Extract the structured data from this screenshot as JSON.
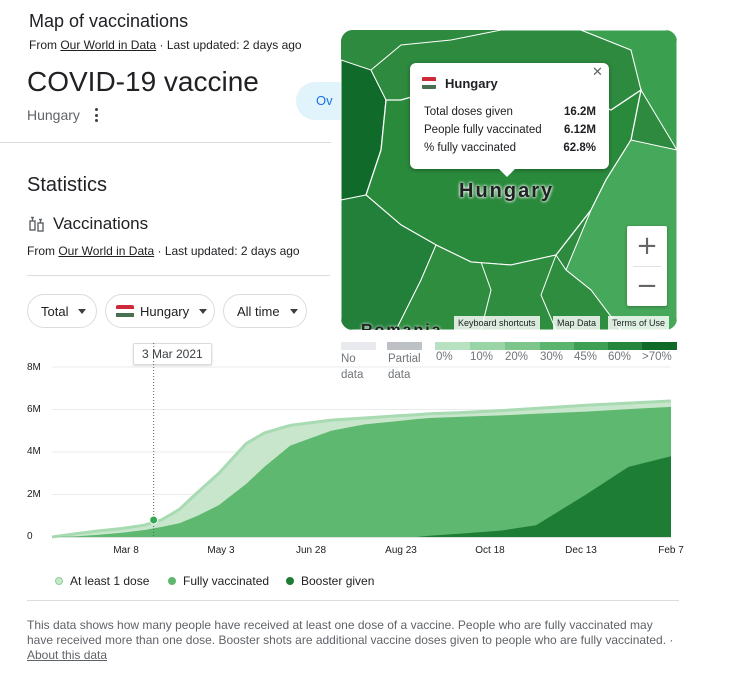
{
  "map_header": {
    "title": "Map of vaccinations",
    "source_prefix": "From ",
    "source_link": "Our World in Data",
    "updated": " · Last updated: 2 days ago"
  },
  "page": {
    "title": "COVID-19 vaccine",
    "location": "Hungary",
    "tab_partial": "Ov"
  },
  "statistics": {
    "heading": "Statistics",
    "section": "Vaccinations",
    "section_icon": "syringe-icon",
    "source_prefix": "From ",
    "source_link": "Our World in Data",
    "updated": " · Last updated: 2 days ago"
  },
  "filters": [
    {
      "label": "Total"
    },
    {
      "label": "Hungary",
      "icon": "hungary-flag-icon"
    },
    {
      "label": "All time"
    }
  ],
  "chart_marker": {
    "date": "3 Mar 2021"
  },
  "map": {
    "country_label": "Hungary",
    "attributions": [
      "Keyboard shortcuts",
      "Map Data",
      "Terms of Use"
    ],
    "partial_bottom_label": "Romania",
    "tooltip": {
      "country": "Hungary",
      "rows": [
        {
          "label": "Total doses given",
          "value": "16.2M"
        },
        {
          "label": "People fully vaccinated",
          "value": "6.12M"
        },
        {
          "label": "% fully vaccinated",
          "value": "62.8%"
        }
      ]
    },
    "scale": [
      {
        "label": "No data",
        "line1": "No",
        "line2": "data",
        "color": "#e8eaed"
      },
      {
        "label": "Partial data",
        "line1": "Partial",
        "line2": "data",
        "color": "#bdc1c6"
      },
      {
        "label": "0%",
        "color": "#b7e1c0"
      },
      {
        "label": "10%",
        "color": "#99d4a6"
      },
      {
        "label": "20%",
        "color": "#7cc68c"
      },
      {
        "label": "30%",
        "color": "#5cb56f"
      },
      {
        "label": "45%",
        "color": "#3c9f53"
      },
      {
        "label": "60%",
        "color": "#24853c"
      },
      {
        "label": ">70%",
        "color": "#0f6a2a"
      }
    ]
  },
  "chart_data": {
    "type": "area",
    "x": [
      "2020-12-26",
      "2021-01-10",
      "2021-01-25",
      "2021-02-10",
      "2021-02-25",
      "2021-03-08",
      "2021-03-20",
      "2021-04-01",
      "2021-04-15",
      "2021-05-03",
      "2021-05-15",
      "2021-06-01",
      "2021-06-28",
      "2021-07-20",
      "2021-08-10",
      "2021-08-23",
      "2021-09-01",
      "2021-09-20",
      "2021-10-18",
      "2021-11-10",
      "2021-12-13",
      "2022-01-10",
      "2022-02-07"
    ],
    "x_tick_labels": [
      "Mar 8",
      "May 3",
      "Jun 28",
      "Aug 23",
      "Oct 18",
      "Dec 13",
      "Feb 7"
    ],
    "y_tick_labels": [
      "0",
      "2M",
      "4M",
      "6M",
      "8M"
    ],
    "ylim": [
      0,
      8000000
    ],
    "series": [
      {
        "name": "At least 1 dose",
        "color": "#c8e6cc",
        "values": [
          0,
          150000,
          280000,
          400000,
          560000,
          800000,
          1300000,
          2100000,
          3000000,
          4400000,
          4900000,
          5250000,
          5500000,
          5600000,
          5700000,
          5750000,
          5800000,
          5850000,
          5950000,
          6050000,
          6200000,
          6300000,
          6400000
        ]
      },
      {
        "name": "Fully vaccinated",
        "color": "#5fb86f",
        "values": [
          0,
          30000,
          100000,
          200000,
          330000,
          470000,
          650000,
          1000000,
          1500000,
          2500000,
          3300000,
          4300000,
          5000000,
          5300000,
          5450000,
          5550000,
          5600000,
          5650000,
          5720000,
          5800000,
          5900000,
          6020000,
          6120000
        ]
      },
      {
        "name": "Booster given",
        "color": "#1e7d34",
        "values": [
          0,
          0,
          0,
          0,
          0,
          0,
          0,
          0,
          0,
          0,
          0,
          0,
          0,
          0,
          0,
          0,
          60000,
          150000,
          300000,
          550000,
          2000000,
          3300000,
          3800000
        ]
      }
    ],
    "highlight": {
      "date": "2021-03-03",
      "value": 800000
    }
  },
  "footnote": {
    "text": "This data shows how many people have received at least one dose of a vaccine. People who are fully vaccinated may have received more than one dose. Booster shots are additional vaccine doses given to people who are fully vaccinated.",
    "separator": " · ",
    "link": "About this data"
  }
}
